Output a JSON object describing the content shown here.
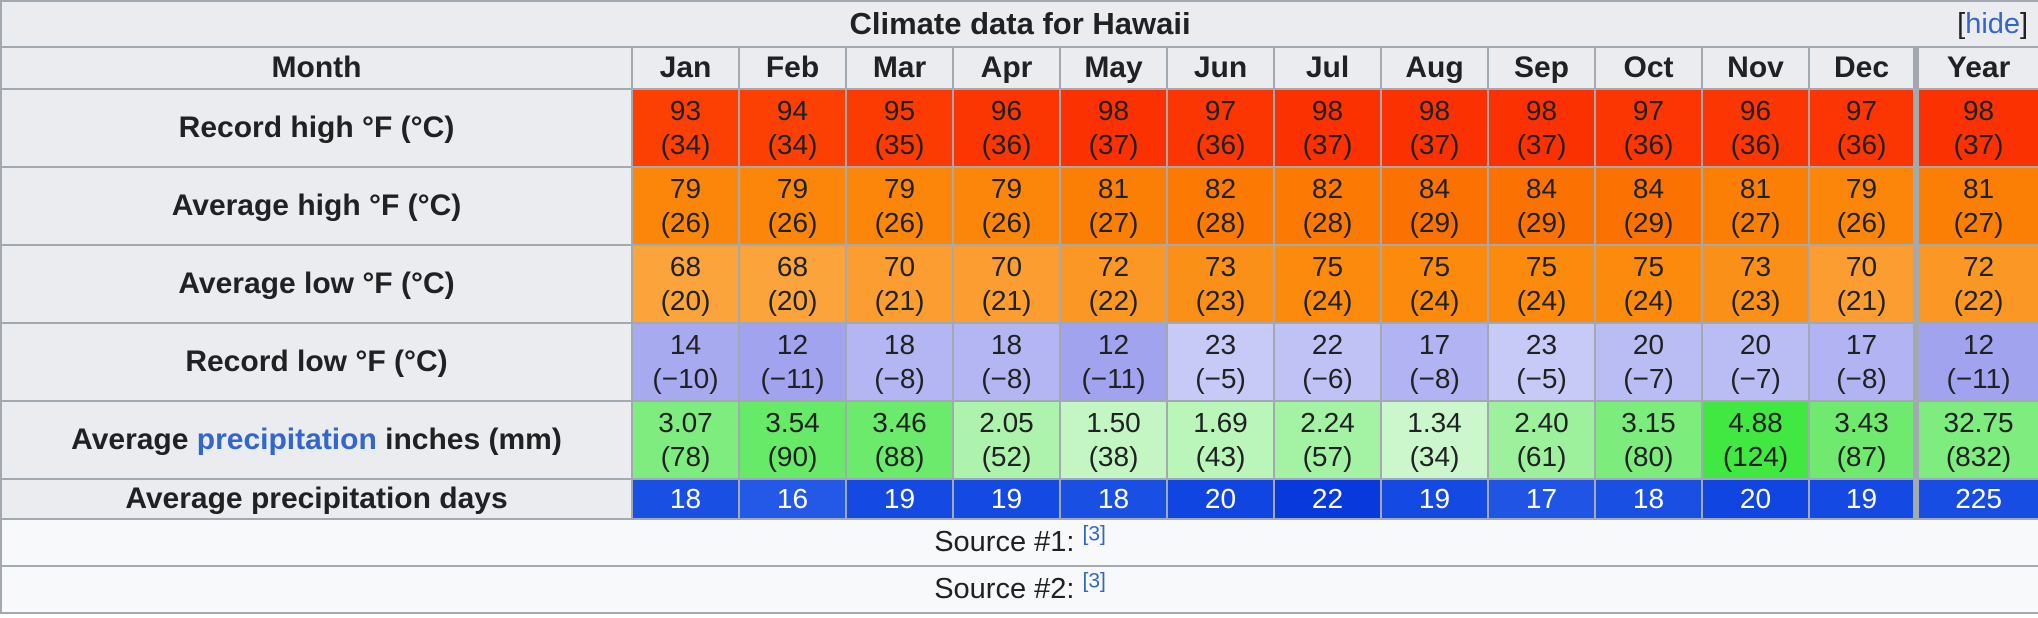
{
  "title": "Climate data for Hawaii",
  "hide_link": {
    "prefix": "[",
    "label": "hide",
    "suffix": "]"
  },
  "month_header_label": "Month",
  "columns": [
    "Jan",
    "Feb",
    "Mar",
    "Apr",
    "May",
    "Jun",
    "Jul",
    "Aug",
    "Sep",
    "Oct",
    "Nov",
    "Dec",
    "Year"
  ],
  "colors": {
    "header_bg": "#eaecf0",
    "border": "#a2a9b1",
    "link_blue": "#3366cc",
    "text": "#202122",
    "source_bg": "#f8f9fa"
  },
  "rows": [
    {
      "name": "record-high",
      "label_parts": [
        {
          "text": "Record high °F (°C)"
        }
      ],
      "text_color": "#202122",
      "cells": [
        {
          "line1": "93",
          "line2": "(34)",
          "bg": "#fc4004"
        },
        {
          "line1": "94",
          "line2": "(34)",
          "bg": "#fc4004"
        },
        {
          "line1": "95",
          "line2": "(35)",
          "bg": "#fc3b03"
        },
        {
          "line1": "96",
          "line2": "(36)",
          "bg": "#fc3603"
        },
        {
          "line1": "98",
          "line2": "(37)",
          "bg": "#fb3102"
        },
        {
          "line1": "97",
          "line2": "(36)",
          "bg": "#fc3603"
        },
        {
          "line1": "98",
          "line2": "(37)",
          "bg": "#fb3102"
        },
        {
          "line1": "98",
          "line2": "(37)",
          "bg": "#fb3102"
        },
        {
          "line1": "98",
          "line2": "(37)",
          "bg": "#fb3102"
        },
        {
          "line1": "97",
          "line2": "(36)",
          "bg": "#fc3603"
        },
        {
          "line1": "96",
          "line2": "(36)",
          "bg": "#fc3603"
        },
        {
          "line1": "97",
          "line2": "(36)",
          "bg": "#fc3603"
        },
        {
          "line1": "98",
          "line2": "(37)",
          "bg": "#fb3102"
        }
      ]
    },
    {
      "name": "average-high",
      "label_parts": [
        {
          "text": "Average high °F (°C)"
        }
      ],
      "text_color": "#202122",
      "cells": [
        {
          "line1": "79",
          "line2": "(26)",
          "bg": "#fc8609"
        },
        {
          "line1": "79",
          "line2": "(26)",
          "bg": "#fc8609"
        },
        {
          "line1": "79",
          "line2": "(26)",
          "bg": "#fc8609"
        },
        {
          "line1": "79",
          "line2": "(26)",
          "bg": "#fc8609"
        },
        {
          "line1": "81",
          "line2": "(27)",
          "bg": "#fc7f05"
        },
        {
          "line1": "82",
          "line2": "(28)",
          "bg": "#fc7903"
        },
        {
          "line1": "82",
          "line2": "(28)",
          "bg": "#fc7903"
        },
        {
          "line1": "84",
          "line2": "(29)",
          "bg": "#fb7202"
        },
        {
          "line1": "84",
          "line2": "(29)",
          "bg": "#fb7202"
        },
        {
          "line1": "84",
          "line2": "(29)",
          "bg": "#fb7202"
        },
        {
          "line1": "81",
          "line2": "(27)",
          "bg": "#fc7f05"
        },
        {
          "line1": "79",
          "line2": "(26)",
          "bg": "#fc8609"
        },
        {
          "line1": "81",
          "line2": "(27)",
          "bg": "#fc7f05"
        }
      ]
    },
    {
      "name": "average-low",
      "label_parts": [
        {
          "text": "Average low °F (°C)"
        }
      ],
      "text_color": "#202122",
      "cells": [
        {
          "line1": "68",
          "line2": "(20)",
          "bg": "#fba43c"
        },
        {
          "line1": "68",
          "line2": "(20)",
          "bg": "#fba43c"
        },
        {
          "line1": "70",
          "line2": "(21)",
          "bg": "#fb9d30"
        },
        {
          "line1": "70",
          "line2": "(21)",
          "bg": "#fb9d30"
        },
        {
          "line1": "72",
          "line2": "(22)",
          "bg": "#fb9724"
        },
        {
          "line1": "73",
          "line2": "(23)",
          "bg": "#fb9018"
        },
        {
          "line1": "75",
          "line2": "(24)",
          "bg": "#fb8a0d"
        },
        {
          "line1": "75",
          "line2": "(24)",
          "bg": "#fb8a0d"
        },
        {
          "line1": "75",
          "line2": "(24)",
          "bg": "#fb8a0d"
        },
        {
          "line1": "75",
          "line2": "(24)",
          "bg": "#fb8a0d"
        },
        {
          "line1": "73",
          "line2": "(23)",
          "bg": "#fb9018"
        },
        {
          "line1": "70",
          "line2": "(21)",
          "bg": "#fb9d30"
        },
        {
          "line1": "72",
          "line2": "(22)",
          "bg": "#fb9724"
        }
      ]
    },
    {
      "name": "record-low",
      "label_parts": [
        {
          "text": "Record low °F (°C)"
        }
      ],
      "text_color": "#202122",
      "cells": [
        {
          "line1": "14",
          "line2": "(−10)",
          "bg": "#a8aaf0"
        },
        {
          "line1": "12",
          "line2": "(−11)",
          "bg": "#a2a3ee"
        },
        {
          "line1": "18",
          "line2": "(−8)",
          "bg": "#b4b6f3"
        },
        {
          "line1": "18",
          "line2": "(−8)",
          "bg": "#b4b6f3"
        },
        {
          "line1": "12",
          "line2": "(−11)",
          "bg": "#a2a3ee"
        },
        {
          "line1": "23",
          "line2": "(−5)",
          "bg": "#c7c9f7"
        },
        {
          "line1": "22",
          "line2": "(−6)",
          "bg": "#c0c2f5"
        },
        {
          "line1": "17",
          "line2": "(−8)",
          "bg": "#b1b3f2"
        },
        {
          "line1": "23",
          "line2": "(−5)",
          "bg": "#c7c9f7"
        },
        {
          "line1": "20",
          "line2": "(−7)",
          "bg": "#babcf4"
        },
        {
          "line1": "20",
          "line2": "(−7)",
          "bg": "#babcf4"
        },
        {
          "line1": "17",
          "line2": "(−8)",
          "bg": "#b1b3f2"
        },
        {
          "line1": "12",
          "line2": "(−11)",
          "bg": "#a2a3ee"
        }
      ]
    },
    {
      "name": "average-precipitation",
      "label_parts": [
        {
          "text": "Average "
        },
        {
          "text": "precipitation",
          "link": true
        },
        {
          "text": " inches (mm)"
        }
      ],
      "text_color": "#202122",
      "cells": [
        {
          "line1": "3.07",
          "line2": "(78)",
          "bg": "#7fec7f"
        },
        {
          "line1": "3.54",
          "line2": "(90)",
          "bg": "#67ea67"
        },
        {
          "line1": "3.46",
          "line2": "(88)",
          "bg": "#6cea6c"
        },
        {
          "line1": "2.05",
          "line2": "(52)",
          "bg": "#adf3ad"
        },
        {
          "line1": "1.50",
          "line2": "(38)",
          "bg": "#c4f6c4"
        },
        {
          "line1": "1.69",
          "line2": "(43)",
          "bg": "#baf5ba"
        },
        {
          "line1": "2.24",
          "line2": "(57)",
          "bg": "#a4f2a4"
        },
        {
          "line1": "1.34",
          "line2": "(34)",
          "bg": "#ccf7cc"
        },
        {
          "line1": "2.40",
          "line2": "(61)",
          "bg": "#9df19d"
        },
        {
          "line1": "3.15",
          "line2": "(80)",
          "bg": "#7cec7c"
        },
        {
          "line1": "4.88",
          "line2": "(124)",
          "bg": "#41e841"
        },
        {
          "line1": "3.43",
          "line2": "(87)",
          "bg": "#6fea6f"
        },
        {
          "line1": "32.75",
          "line2": "(832)",
          "bg": "#7eec7e"
        }
      ]
    },
    {
      "name": "precipitation-days",
      "label_parts": [
        {
          "text": "Average precipitation days"
        }
      ],
      "text_color": "#ffffff",
      "cells": [
        {
          "line1": "18",
          "bg": "#1a4fe4"
        },
        {
          "line1": "16",
          "bg": "#2459e7"
        },
        {
          "line1": "19",
          "bg": "#154ae2"
        },
        {
          "line1": "19",
          "bg": "#154ae2"
        },
        {
          "line1": "18",
          "bg": "#1a4fe4"
        },
        {
          "line1": "20",
          "bg": "#1045e1"
        },
        {
          "line1": "22",
          "bg": "#0739dd"
        },
        {
          "line1": "19",
          "bg": "#154ae2"
        },
        {
          "line1": "17",
          "bg": "#1f54e5"
        },
        {
          "line1": "18",
          "bg": "#1a4fe4"
        },
        {
          "line1": "20",
          "bg": "#1045e1"
        },
        {
          "line1": "19",
          "bg": "#154ae2"
        },
        {
          "line1": "225",
          "bg": "#174de3"
        }
      ]
    }
  ],
  "sources": [
    {
      "label": "Source #1:",
      "ref": "[3]"
    },
    {
      "label": "Source #2:",
      "ref": "[3]"
    }
  ],
  "chart_data": {
    "type": "table",
    "title": "Climate data for Hawaii",
    "categories": [
      "Jan",
      "Feb",
      "Mar",
      "Apr",
      "May",
      "Jun",
      "Jul",
      "Aug",
      "Sep",
      "Oct",
      "Nov",
      "Dec",
      "Year"
    ],
    "series": [
      {
        "name": "Record high °F",
        "values": [
          93,
          94,
          95,
          96,
          98,
          97,
          98,
          98,
          98,
          97,
          96,
          97,
          98
        ]
      },
      {
        "name": "Record high °C",
        "values": [
          34,
          34,
          35,
          36,
          37,
          36,
          37,
          37,
          37,
          36,
          36,
          36,
          37
        ]
      },
      {
        "name": "Average high °F",
        "values": [
          79,
          79,
          79,
          79,
          81,
          82,
          82,
          84,
          84,
          84,
          81,
          79,
          81
        ]
      },
      {
        "name": "Average high °C",
        "values": [
          26,
          26,
          26,
          26,
          27,
          28,
          28,
          29,
          29,
          29,
          27,
          26,
          27
        ]
      },
      {
        "name": "Average low °F",
        "values": [
          68,
          68,
          70,
          70,
          72,
          73,
          75,
          75,
          75,
          75,
          73,
          70,
          72
        ]
      },
      {
        "name": "Average low °C",
        "values": [
          20,
          20,
          21,
          21,
          22,
          23,
          24,
          24,
          24,
          24,
          23,
          21,
          22
        ]
      },
      {
        "name": "Record low °F",
        "values": [
          14,
          12,
          18,
          18,
          12,
          23,
          22,
          17,
          23,
          20,
          20,
          17,
          12
        ]
      },
      {
        "name": "Record low °C",
        "values": [
          -10,
          -11,
          -8,
          -8,
          -11,
          -5,
          -6,
          -8,
          -5,
          -7,
          -7,
          -8,
          -11
        ]
      },
      {
        "name": "Average precipitation inches",
        "values": [
          3.07,
          3.54,
          3.46,
          2.05,
          1.5,
          1.69,
          2.24,
          1.34,
          2.4,
          3.15,
          4.88,
          3.43,
          32.75
        ]
      },
      {
        "name": "Average precipitation mm",
        "values": [
          78,
          90,
          88,
          52,
          38,
          43,
          57,
          34,
          61,
          80,
          124,
          87,
          832
        ]
      },
      {
        "name": "Average precipitation days",
        "values": [
          18,
          16,
          19,
          19,
          18,
          20,
          22,
          19,
          17,
          18,
          20,
          19,
          225
        ]
      }
    ]
  }
}
